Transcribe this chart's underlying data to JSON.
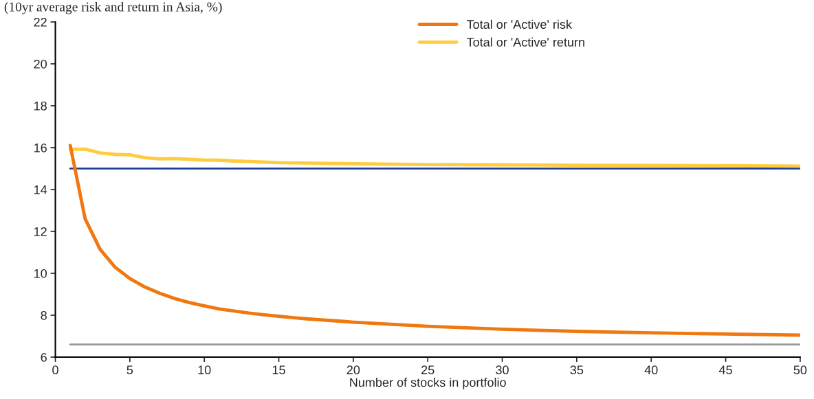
{
  "chart_data": {
    "type": "line",
    "title": "(10yr average risk and return in Asia, %)",
    "xlabel": "Number of stocks in portfolio",
    "xlim": [
      0,
      50
    ],
    "xticks": [
      0,
      5,
      10,
      15,
      20,
      25,
      30,
      35,
      40,
      45,
      50
    ],
    "ylim": [
      6,
      22
    ],
    "yticks": [
      6,
      8,
      10,
      12,
      14,
      16,
      18,
      20,
      22
    ],
    "grid": false,
    "legend": "top",
    "marker": "none",
    "line_style": "solid",
    "series": [
      {
        "name": "Total or 'Active' risk",
        "color": "#f07810",
        "x": [
          1,
          2,
          3,
          4,
          5,
          6,
          7,
          8,
          9,
          10,
          11,
          12,
          13,
          14,
          15,
          16,
          17,
          18,
          19,
          20,
          25,
          30,
          35,
          40,
          45,
          50
        ],
        "values": [
          16.1,
          12.6,
          11.15,
          10.3,
          9.75,
          9.35,
          9.05,
          8.8,
          8.6,
          8.45,
          8.3,
          8.2,
          8.1,
          8.02,
          7.95,
          7.88,
          7.82,
          7.77,
          7.72,
          7.67,
          7.47,
          7.33,
          7.23,
          7.16,
          7.1,
          7.05
        ]
      },
      {
        "name": "Total or 'Active' return",
        "color": "#ffcc40",
        "x": [
          1,
          2,
          3,
          4,
          5,
          6,
          7,
          8,
          9,
          10,
          11,
          12,
          13,
          14,
          15,
          20,
          25,
          30,
          35,
          40,
          45,
          50
        ],
        "values": [
          15.92,
          15.93,
          15.75,
          15.68,
          15.66,
          15.52,
          15.46,
          15.48,
          15.44,
          15.41,
          15.4,
          15.36,
          15.34,
          15.31,
          15.28,
          15.23,
          15.19,
          15.18,
          15.16,
          15.15,
          15.14,
          15.12
        ]
      },
      {
        "color": "#1f3f99",
        "x": [
          1,
          50
        ],
        "values": [
          15,
          15
        ]
      },
      {
        "color": "#999999",
        "x": [
          1,
          50
        ],
        "values": [
          6.6,
          6.6
        ]
      }
    ]
  }
}
